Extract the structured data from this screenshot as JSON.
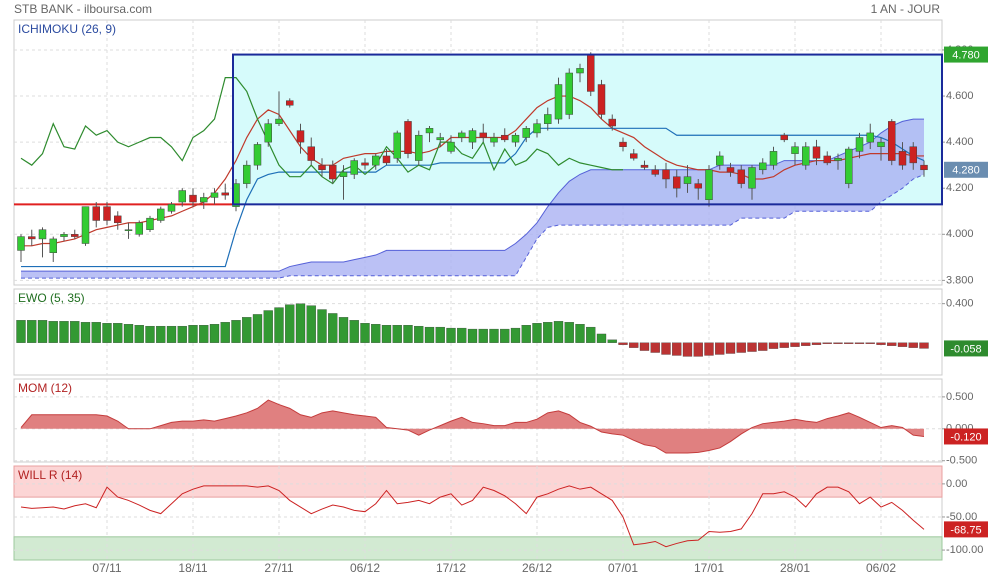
{
  "header": {
    "title": "STB BANK - ilboursa.com",
    "period": "1 AN - JOUR"
  },
  "chart_data": [
    {
      "type": "candlestick",
      "title": "ICHIMOKU (26, 9)",
      "title_color": "#2b4ba0",
      "categories": [
        null,
        null,
        null,
        null,
        null,
        null,
        null,
        null,
        "07/11",
        null,
        null,
        null,
        null,
        null,
        null,
        null,
        "18/11",
        null,
        null,
        null,
        null,
        null,
        null,
        null,
        "27/11",
        null,
        null,
        null,
        null,
        null,
        null,
        null,
        "06/12",
        null,
        null,
        null,
        null,
        null,
        null,
        null,
        "17/12",
        null,
        null,
        null,
        null,
        null,
        null,
        null,
        "26/12",
        null,
        null,
        null,
        null,
        null,
        null,
        null,
        "07/01",
        null,
        null,
        null,
        null,
        null,
        null,
        null,
        "17/01",
        null,
        null,
        null,
        null,
        null,
        null,
        null,
        "28/01",
        null,
        null,
        null,
        null,
        null,
        null,
        null,
        "06/02",
        null,
        null,
        null,
        null
      ],
      "open": [
        3.93,
        3.99,
        3.98,
        3.92,
        3.99,
        4.0,
        3.96,
        4.12,
        4.12,
        4.08,
        4.02,
        4.0,
        4.02,
        4.06,
        4.1,
        4.14,
        4.17,
        4.14,
        4.16,
        4.18,
        4.12,
        4.22,
        4.3,
        4.4,
        4.48,
        4.58,
        4.45,
        4.38,
        4.3,
        4.3,
        4.25,
        4.26,
        4.31,
        4.3,
        4.34,
        4.33,
        4.49,
        4.32,
        4.44,
        4.41,
        4.36,
        4.42,
        4.4,
        4.44,
        4.4,
        4.43,
        4.4,
        4.42,
        4.44,
        4.48,
        4.5,
        4.52,
        4.7,
        4.78,
        4.65,
        4.5,
        4.4,
        4.35,
        4.3,
        4.28,
        4.28,
        4.25,
        4.22,
        4.22,
        4.15,
        4.3,
        4.29,
        4.28,
        4.2,
        4.28,
        4.3,
        4.43,
        4.35,
        4.3,
        4.38,
        4.34,
        4.32,
        4.22,
        4.36,
        4.4,
        4.38,
        4.49,
        4.36,
        4.38,
        4.3
      ],
      "high": [
        4.0,
        4.02,
        4.03,
        3.99,
        4.01,
        4.02,
        4.12,
        4.14,
        4.14,
        4.1,
        4.05,
        4.06,
        4.08,
        4.12,
        4.14,
        4.2,
        4.2,
        4.18,
        4.2,
        4.22,
        4.24,
        4.32,
        4.4,
        4.5,
        4.62,
        4.59,
        4.48,
        4.42,
        4.33,
        4.32,
        4.3,
        4.33,
        4.33,
        4.35,
        4.37,
        4.45,
        4.5,
        4.45,
        4.47,
        4.44,
        4.43,
        4.45,
        4.46,
        4.48,
        4.44,
        4.46,
        4.44,
        4.47,
        4.5,
        4.55,
        4.68,
        4.72,
        4.74,
        4.79,
        4.67,
        4.52,
        4.42,
        4.37,
        4.32,
        4.3,
        4.31,
        4.28,
        4.3,
        4.24,
        4.3,
        4.36,
        4.31,
        4.3,
        4.3,
        4.33,
        4.38,
        4.44,
        4.4,
        4.4,
        4.41,
        4.36,
        4.35,
        4.38,
        4.44,
        4.48,
        4.42,
        4.5,
        4.4,
        4.4,
        4.32
      ],
      "low": [
        3.88,
        3.95,
        3.9,
        3.88,
        3.97,
        3.98,
        3.95,
        4.03,
        4.04,
        4.02,
        3.98,
        3.99,
        4.01,
        4.05,
        4.09,
        4.12,
        4.12,
        4.11,
        4.13,
        4.15,
        4.1,
        4.2,
        4.28,
        4.38,
        4.47,
        4.55,
        4.35,
        4.3,
        4.25,
        4.22,
        4.15,
        4.24,
        4.28,
        4.28,
        4.3,
        4.31,
        4.33,
        4.3,
        4.4,
        4.38,
        4.35,
        4.4,
        4.37,
        4.4,
        4.38,
        4.4,
        4.38,
        4.4,
        4.42,
        4.45,
        4.48,
        4.5,
        4.66,
        4.6,
        4.5,
        4.45,
        4.36,
        4.32,
        4.28,
        4.25,
        4.2,
        4.16,
        4.18,
        4.15,
        4.12,
        4.28,
        4.25,
        4.2,
        4.15,
        4.26,
        4.28,
        4.4,
        4.3,
        4.28,
        4.3,
        4.3,
        4.28,
        4.2,
        4.33,
        4.37,
        4.32,
        4.3,
        4.28,
        4.28,
        4.25
      ],
      "close": [
        3.99,
        3.98,
        4.02,
        3.98,
        4.0,
        3.99,
        4.12,
        4.06,
        4.06,
        4.05,
        4.02,
        4.05,
        4.07,
        4.11,
        4.13,
        4.19,
        4.14,
        4.16,
        4.18,
        4.17,
        4.22,
        4.3,
        4.39,
        4.48,
        4.5,
        4.56,
        4.4,
        4.32,
        4.28,
        4.24,
        4.27,
        4.32,
        4.3,
        4.34,
        4.31,
        4.44,
        4.35,
        4.43,
        4.46,
        4.42,
        4.4,
        4.44,
        4.45,
        4.42,
        4.42,
        4.41,
        4.43,
        4.46,
        4.48,
        4.52,
        4.65,
        4.7,
        4.72,
        4.62,
        4.52,
        4.47,
        4.38,
        4.33,
        4.29,
        4.26,
        4.24,
        4.2,
        4.25,
        4.2,
        4.28,
        4.34,
        4.27,
        4.22,
        4.29,
        4.31,
        4.36,
        4.41,
        4.38,
        4.38,
        4.33,
        4.31,
        4.33,
        4.37,
        4.42,
        4.44,
        4.4,
        4.32,
        4.3,
        4.31,
        4.28
      ],
      "last_label": "4.280",
      "last_color": "#6a8db0",
      "up_color": "#33cc33",
      "down_color": "#cc2222",
      "lines": [
        {
          "color": "#c0392b",
          "values": [
            3.95,
            3.95,
            3.96,
            3.96,
            3.97,
            3.98,
            4.0,
            4.02,
            4.03,
            4.04,
            4.05,
            4.05,
            4.06,
            4.07,
            4.08,
            4.1,
            4.12,
            4.14,
            4.18,
            4.24,
            4.32,
            4.42,
            4.5,
            4.54,
            4.52,
            4.45,
            4.38,
            4.33,
            4.3,
            4.3,
            4.33,
            4.34,
            4.35,
            4.35,
            4.36,
            4.36,
            4.36,
            4.35,
            4.36,
            4.38,
            4.42,
            4.42,
            4.42,
            4.42,
            4.42,
            4.42,
            4.45,
            4.5,
            4.55,
            4.58,
            4.6,
            4.6,
            4.58,
            4.55,
            4.5,
            4.46,
            4.44,
            4.42,
            4.38,
            4.35,
            4.32,
            4.3,
            4.29,
            4.28,
            4.28,
            4.27,
            4.27,
            4.26,
            4.24,
            4.24,
            4.25,
            4.28,
            4.3,
            4.31,
            4.32,
            4.32,
            4.32,
            4.33,
            4.34,
            4.35,
            4.35,
            4.35,
            4.35,
            4.34,
            4.34
          ]
        },
        {
          "color": "#1e6fb8",
          "values": [
            3.86,
            3.86,
            3.86,
            3.86,
            3.86,
            3.86,
            3.86,
            3.86,
            3.86,
            3.86,
            3.86,
            3.86,
            3.86,
            3.86,
            3.86,
            3.86,
            3.86,
            3.86,
            3.86,
            3.86,
            4.02,
            4.15,
            4.24,
            4.26,
            4.27,
            4.27,
            4.27,
            4.27,
            4.27,
            4.27,
            4.27,
            4.27,
            4.27,
            4.27,
            4.3,
            4.3,
            4.3,
            4.3,
            4.3,
            4.31,
            4.31,
            4.31,
            4.31,
            4.31,
            4.31,
            4.31,
            4.35,
            4.42,
            4.46,
            4.46,
            4.46,
            4.46,
            4.46,
            4.46,
            4.46,
            4.46,
            4.46,
            4.46,
            4.46,
            4.46,
            4.46,
            4.43,
            4.43,
            4.43,
            4.43,
            4.43,
            4.43,
            4.43,
            4.43,
            4.43,
            4.43,
            4.43,
            4.43,
            4.43,
            4.43,
            4.43,
            4.43,
            4.43,
            4.43,
            4.43,
            4.42,
            4.4,
            4.37,
            4.34,
            4.32
          ]
        },
        {
          "color": "#2e8b2e",
          "values": [
            4.33,
            4.3,
            4.35,
            4.48,
            4.38,
            4.37,
            4.47,
            4.43,
            4.45,
            4.4,
            4.38,
            4.4,
            4.42,
            4.42,
            4.38,
            4.32,
            4.42,
            4.45,
            4.5,
            4.68,
            4.68,
            4.62,
            4.5,
            4.4,
            4.3,
            4.25,
            4.25,
            4.3,
            4.25,
            4.22,
            4.28,
            4.3,
            4.26,
            4.3,
            4.38,
            4.33,
            4.27,
            4.3,
            4.28,
            4.4,
            4.4,
            4.35,
            4.33,
            4.4,
            4.28,
            4.37,
            4.3,
            4.32,
            4.37,
            4.35,
            4.3,
            4.33,
            4.31,
            4.3,
            4.29,
            4.28,
            4.28,
            null,
            null,
            null,
            null,
            null,
            null,
            null,
            null,
            null,
            null,
            null,
            null,
            null,
            null,
            null,
            null,
            null,
            null,
            null,
            null,
            null,
            null,
            null,
            null,
            null,
            null,
            null,
            null
          ]
        }
      ],
      "cloud": {
        "color": "#aab2f2",
        "edge_color": "#5560d8",
        "span_a": [
          3.84,
          3.84,
          3.84,
          3.84,
          3.84,
          3.84,
          3.84,
          3.84,
          3.84,
          3.84,
          3.84,
          3.84,
          3.84,
          3.84,
          3.84,
          3.84,
          3.84,
          3.84,
          3.84,
          3.84,
          3.84,
          3.84,
          3.84,
          3.84,
          3.84,
          3.86,
          3.87,
          3.88,
          3.88,
          3.88,
          3.88,
          3.89,
          3.9,
          3.91,
          3.93,
          3.93,
          3.93,
          3.93,
          3.93,
          3.93,
          3.93,
          3.93,
          3.93,
          3.93,
          3.93,
          3.93,
          3.96,
          4.0,
          4.05,
          4.12,
          4.18,
          4.23,
          4.26,
          4.28,
          4.28,
          4.28,
          4.28,
          4.28,
          4.28,
          4.28,
          4.28,
          4.28,
          4.28,
          4.28,
          4.28,
          4.3,
          4.3,
          4.3,
          4.3,
          4.3,
          4.3,
          4.32,
          4.32,
          4.32,
          4.32,
          4.32,
          4.34,
          4.36,
          4.38,
          4.4,
          4.44,
          4.47,
          4.49,
          4.5,
          4.5
        ],
        "span_b": [
          3.81,
          3.81,
          3.81,
          3.81,
          3.81,
          3.81,
          3.81,
          3.81,
          3.81,
          3.81,
          3.81,
          3.81,
          3.81,
          3.81,
          3.81,
          3.81,
          3.81,
          3.81,
          3.81,
          3.81,
          3.81,
          3.81,
          3.81,
          3.81,
          3.81,
          3.82,
          3.82,
          3.82,
          3.82,
          3.82,
          3.82,
          3.82,
          3.82,
          3.82,
          3.82,
          3.82,
          3.82,
          3.82,
          3.82,
          3.82,
          3.82,
          3.82,
          3.82,
          3.82,
          3.82,
          3.82,
          3.82,
          3.9,
          3.98,
          4.03,
          4.04,
          4.04,
          4.04,
          4.04,
          4.04,
          4.04,
          4.04,
          4.04,
          4.04,
          4.04,
          4.04,
          4.04,
          4.04,
          4.04,
          4.04,
          4.04,
          4.04,
          4.07,
          4.07,
          4.07,
          4.07,
          4.07,
          4.1,
          4.1,
          4.1,
          4.1,
          4.1,
          4.1,
          4.1,
          4.1,
          4.14,
          4.17,
          4.2,
          4.24,
          4.26
        ]
      },
      "zone": {
        "high": 4.78,
        "low": 4.13,
        "high_label": "4.780",
        "color": "#1a2a9a",
        "fill": "#d6fbfb",
        "line_color": "#e02020",
        "badge_color": "#2fa52f"
      },
      "ylim": [
        3.78,
        4.93
      ],
      "yticks": [
        {
          "value": 3.8,
          "label": "3.800"
        },
        {
          "value": 4.0,
          "label": "4.000"
        },
        {
          "value": 4.2,
          "label": "4.200"
        },
        {
          "value": 4.4,
          "label": "4.400"
        },
        {
          "value": 4.6,
          "label": "4.600"
        },
        {
          "value": 4.8,
          "label": "4.800"
        }
      ],
      "grid": true
    },
    {
      "type": "bar",
      "title": "EWO (5, 35)",
      "title_color": "#1f6e1f",
      "values": [
        0.23,
        0.23,
        0.23,
        0.22,
        0.22,
        0.22,
        0.21,
        0.21,
        0.2,
        0.2,
        0.19,
        0.18,
        0.17,
        0.17,
        0.17,
        0.17,
        0.18,
        0.18,
        0.19,
        0.21,
        0.23,
        0.26,
        0.29,
        0.33,
        0.36,
        0.39,
        0.4,
        0.38,
        0.34,
        0.3,
        0.26,
        0.23,
        0.2,
        0.19,
        0.18,
        0.18,
        0.18,
        0.17,
        0.16,
        0.16,
        0.15,
        0.15,
        0.14,
        0.14,
        0.14,
        0.14,
        0.15,
        0.18,
        0.2,
        0.21,
        0.22,
        0.21,
        0.19,
        0.16,
        0.09,
        0.03,
        -0.02,
        -0.05,
        -0.08,
        -0.1,
        -0.12,
        -0.13,
        -0.14,
        -0.14,
        -0.13,
        -0.12,
        -0.11,
        -0.1,
        -0.09,
        -0.08,
        -0.06,
        -0.05,
        -0.04,
        -0.03,
        -0.02,
        -0.01,
        -0.01,
        -0.01,
        -0.01,
        -0.01,
        -0.02,
        -0.03,
        -0.04,
        -0.05,
        -0.058
      ],
      "positive_color": "#339933",
      "negative_color": "#bb3333",
      "badge_color": "#2e8b2e",
      "ylim": [
        -0.33,
        0.55
      ],
      "yticks": [
        {
          "value": 0.4,
          "label": "0.400"
        }
      ],
      "grid": true
    },
    {
      "type": "area",
      "title": "MOM (12)",
      "title_color": "#b22222",
      "values": [
        0.02,
        0.22,
        0.22,
        0.22,
        0.22,
        0.22,
        0.22,
        0.22,
        0.2,
        0.12,
        0.0,
        0.0,
        0.0,
        0.05,
        0.1,
        0.12,
        0.12,
        0.14,
        0.12,
        0.16,
        0.2,
        0.25,
        0.32,
        0.45,
        0.38,
        0.32,
        0.22,
        0.18,
        0.25,
        0.28,
        0.25,
        0.22,
        0.2,
        0.18,
        0.02,
        0.0,
        -0.02,
        -0.1,
        -0.02,
        0.05,
        0.12,
        0.18,
        0.1,
        0.08,
        0.05,
        0.05,
        0.1,
        0.1,
        0.15,
        0.25,
        0.28,
        0.22,
        0.1,
        0.04,
        -0.05,
        -0.08,
        -0.1,
        -0.18,
        -0.25,
        -0.28,
        -0.38,
        -0.38,
        -0.38,
        -0.37,
        -0.34,
        -0.3,
        -0.2,
        -0.08,
        0.02,
        0.08,
        0.1,
        0.12,
        0.15,
        0.12,
        0.1,
        0.16,
        0.2,
        0.25,
        0.18,
        0.1,
        0.02,
        0.05,
        0.02,
        -0.1,
        -0.12
      ],
      "last_label": "-0.120",
      "color": "#c43c3c",
      "fill": "#e08080",
      "badge_color": "#cc2222",
      "ylim": [
        -0.52,
        0.78
      ],
      "yticks": [
        {
          "value": 0.5,
          "label": "0.500"
        },
        {
          "value": 0,
          "label": "0.000"
        },
        {
          "value": -0.5,
          "label": "-0.500"
        }
      ],
      "grid": true
    },
    {
      "type": "line",
      "title": "WILL R (14)",
      "title_color": "#b22222",
      "values": [
        -35,
        -37,
        -36,
        -35,
        -38,
        -33,
        -30,
        -36,
        -5,
        -20,
        -25,
        -32,
        -40,
        -45,
        -30,
        -15,
        -8,
        -3,
        -3,
        -3,
        -3,
        -3,
        -5,
        -3,
        -10,
        -25,
        -35,
        -45,
        -38,
        -32,
        -35,
        -40,
        -42,
        -30,
        -10,
        -30,
        -28,
        -25,
        -30,
        -20,
        -15,
        -32,
        -25,
        -5,
        -10,
        -18,
        -30,
        -45,
        -20,
        -15,
        -8,
        -3,
        -8,
        -5,
        -15,
        -25,
        -50,
        -92,
        -90,
        -87,
        -95,
        -90,
        -86,
        -85,
        -72,
        -73,
        -72,
        -68,
        -45,
        -15,
        -15,
        -12,
        -20,
        -35,
        -15,
        -5,
        -5,
        -12,
        -30,
        -20,
        -35,
        -28,
        -40,
        -55,
        -68.75
      ],
      "color": "#cc2222",
      "badge_color": "#cc2222",
      "overbought": -20,
      "oversold": -80,
      "overbought_color": "#fcd5d5",
      "oversold_color": "#d2ead2",
      "ylim": [
        -115,
        27
      ],
      "yticks": [
        {
          "value": 0,
          "label": "0.00"
        },
        {
          "value": -50,
          "label": "-50.00"
        },
        {
          "value": -100,
          "label": "-100.00"
        }
      ],
      "grid": true
    }
  ]
}
